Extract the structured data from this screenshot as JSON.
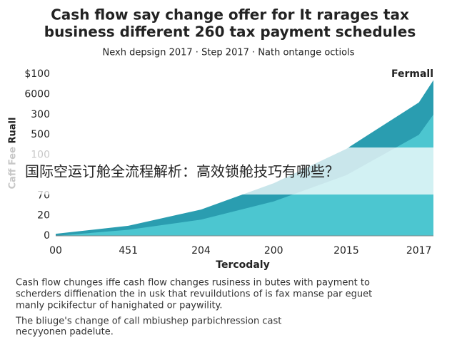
{
  "chart_data": {
    "type": "area",
    "title": [
      "Cash flow say change offer for It rarages tax",
      "business different 260 tax payment schedules"
    ],
    "subtitle": "Nexh depsign 2017  ·  Step 2017  ·  Nath ontange octiols",
    "x_label": "Tercodaly",
    "y_label": "Caff Fee Ruall",
    "x": [
      0,
      1,
      2,
      3,
      4,
      5,
      5.2
    ],
    "xlim": [
      0,
      5.2
    ],
    "xticks": [
      {
        "value": 0,
        "label": "00"
      },
      {
        "value": 1,
        "label": "451"
      },
      {
        "value": 2,
        "label": "204"
      },
      {
        "value": 3,
        "label": "200"
      },
      {
        "value": 4,
        "label": "2015"
      },
      {
        "value": 5,
        "label": "2017"
      }
    ],
    "ylim": [
      0,
      8
    ],
    "yticks": [
      {
        "value": 8,
        "label": "$100"
      },
      {
        "value": 7,
        "label": "6000"
      },
      {
        "value": 6,
        "label": "300"
      },
      {
        "value": 5,
        "label": "500"
      },
      {
        "value": 4,
        "label": "100"
      },
      {
        "value": 2,
        "label": "70"
      },
      {
        "value": 1,
        "label": "20"
      },
      0
    ],
    "series": [
      {
        "name": "Fermall",
        "color": "#2a9db0",
        "values": [
          0.1,
          0.5,
          1.3,
          2.6,
          4.3,
          6.6,
          7.7
        ]
      },
      {
        "color": "#4cc6d0",
        "values": [
          0,
          0.3,
          0.8,
          1.7,
          3.0,
          5.0,
          6.0
        ]
      }
    ],
    "banner": "国际空运订舱全流程解析：高效锁舱技巧有哪些？",
    "notes": [
      [
        "Cash flow chunges iffe cash flow changes rusiness in butes with payment to",
        "scherders diffienation the in usk that revuildutions of is fax manse par eguet",
        "manly pcikifectur of hanighated or paywility."
      ],
      [
        "The bliuge's change of call mbiushep parbichression cast",
        "necyyonen padelute."
      ]
    ]
  }
}
